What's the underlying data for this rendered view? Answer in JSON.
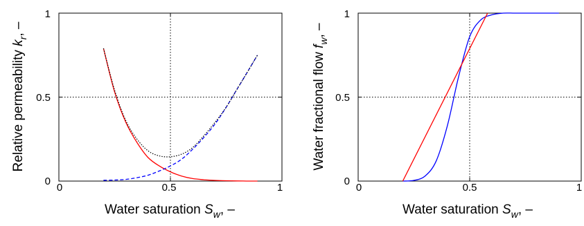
{
  "chart_data": [
    {
      "type": "line",
      "xlabel_text": "Water saturation ",
      "xlabel_symbol": "S",
      "xlabel_sub": "w",
      "xlabel_unit": ", –",
      "ylabel_text": "Relative permeability ",
      "ylabel_symbol": "k",
      "ylabel_sub": "r",
      "ylabel_unit": ", –",
      "xlim": [
        0,
        1
      ],
      "ylim": [
        0,
        1
      ],
      "xticks": [
        "0",
        "0.5",
        "1"
      ],
      "yticks": [
        "0",
        "0.5",
        "1"
      ],
      "grid": true,
      "reference_lines": {
        "x": 0.5,
        "y": 0.5
      },
      "series": [
        {
          "color": "#ff0000",
          "style": "solid",
          "x": [
            0.2,
            0.25,
            0.3,
            0.35,
            0.4,
            0.45,
            0.5,
            0.55,
            0.6,
            0.65,
            0.7,
            0.75,
            0.8,
            0.85,
            0.89
          ],
          "y": [
            0.79,
            0.53,
            0.35,
            0.23,
            0.14,
            0.09,
            0.055,
            0.03,
            0.015,
            0.008,
            0.004,
            0.002,
            0.001,
            0.0,
            0.0
          ]
        },
        {
          "color": "#0000ff",
          "style": "dashed",
          "x": [
            0.2,
            0.25,
            0.3,
            0.35,
            0.4,
            0.45,
            0.5,
            0.55,
            0.6,
            0.65,
            0.7,
            0.75,
            0.8,
            0.85,
            0.89
          ],
          "y": [
            0.005,
            0.006,
            0.01,
            0.02,
            0.035,
            0.06,
            0.09,
            0.13,
            0.19,
            0.26,
            0.34,
            0.44,
            0.55,
            0.66,
            0.75
          ]
        },
        {
          "color": "#000000",
          "style": "dotted",
          "x": [
            0.2,
            0.25,
            0.3,
            0.35,
            0.4,
            0.45,
            0.5,
            0.55,
            0.6,
            0.65,
            0.7,
            0.75,
            0.8,
            0.85,
            0.89
          ],
          "y": [
            0.79,
            0.54,
            0.36,
            0.25,
            0.18,
            0.15,
            0.145,
            0.16,
            0.2,
            0.27,
            0.35,
            0.44,
            0.55,
            0.66,
            0.75
          ]
        }
      ]
    },
    {
      "type": "line",
      "xlabel_text": "Water saturation ",
      "xlabel_symbol": "S",
      "xlabel_sub": "w",
      "xlabel_unit": ", –",
      "ylabel_text": "Water fractional flow ",
      "ylabel_symbol": "f",
      "ylabel_sub": "w",
      "ylabel_unit": ", –",
      "xlim": [
        0,
        1
      ],
      "ylim": [
        0,
        1
      ],
      "xticks": [
        "0",
        "0.5",
        "1"
      ],
      "yticks": [
        "0",
        "0.5",
        "1"
      ],
      "grid": true,
      "reference_lines": {
        "x": 0.5,
        "y": 0.5
      },
      "series": [
        {
          "color": "#0000ff",
          "style": "solid",
          "x": [
            0.2,
            0.25,
            0.3,
            0.35,
            0.4,
            0.45,
            0.5,
            0.55,
            0.6,
            0.65,
            0.7,
            0.75,
            0.8,
            0.85,
            0.9
          ],
          "y": [
            0.0,
            0.004,
            0.03,
            0.12,
            0.33,
            0.62,
            0.86,
            0.96,
            0.99,
            1.0,
            1.0,
            1.0,
            1.0,
            1.0,
            1.0
          ]
        },
        {
          "color": "#ff0000",
          "style": "solid",
          "x": [
            0.2,
            0.58
          ],
          "y": [
            0.0,
            1.0
          ]
        }
      ]
    }
  ]
}
